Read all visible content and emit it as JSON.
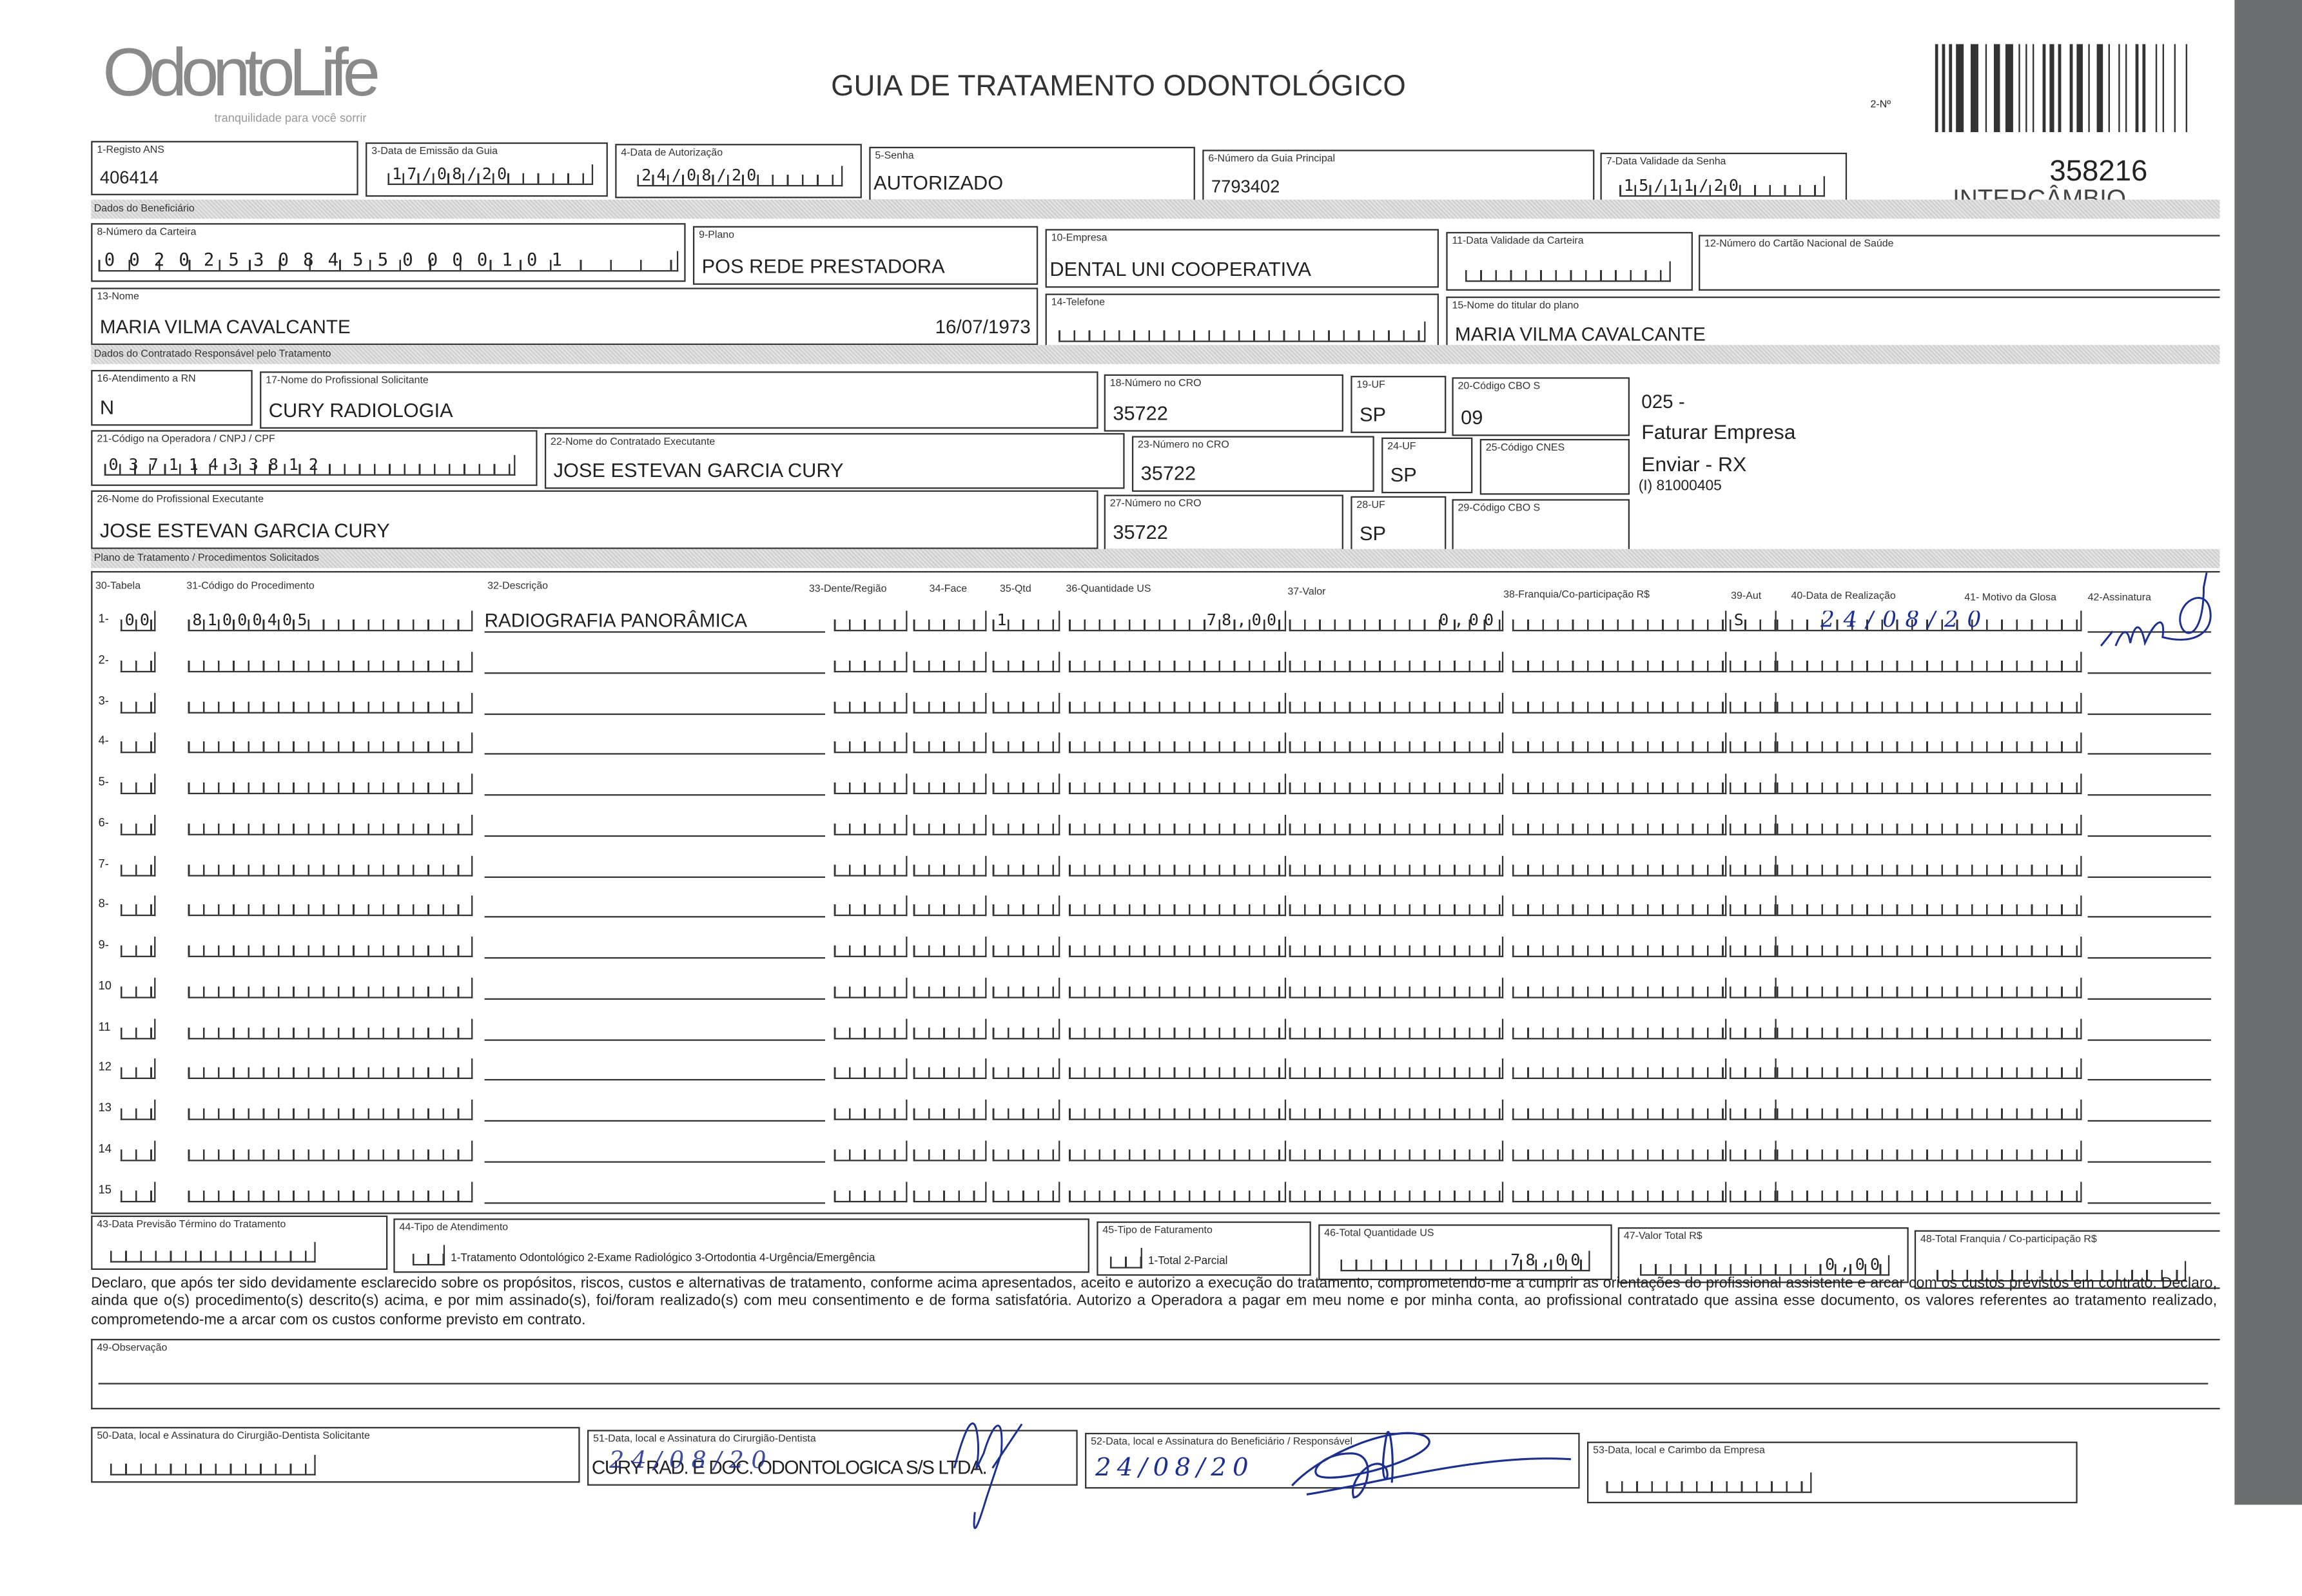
{
  "header": {
    "logo_text": "OdontoLife",
    "logo_tagline": "tranquilidade para você sorrir",
    "title": "GUIA DE TRATAMENTO ODONTOLÓGICO",
    "guide_number_label": "2-Nº",
    "stamp_number": "358216",
    "stamp_text": "INTERCÂMBIO"
  },
  "fields": {
    "f1": {
      "label": "1-Registo ANS",
      "value": "406414"
    },
    "f3": {
      "label": "3-Data de Emissão da Guia",
      "value": "17/08/20"
    },
    "f4": {
      "label": "4-Data de Autorização",
      "value": "24/08/20"
    },
    "f5": {
      "label": "5-Senha",
      "value": "AUTORIZADO"
    },
    "f6": {
      "label": "6-Número da Guia Principal",
      "value": "7793402"
    },
    "f7": {
      "label": "7-Data Validade da Senha",
      "value": "15/11/20"
    },
    "f8": {
      "label": "8-Número da Carteira",
      "value": "0020253084550000101"
    },
    "f9": {
      "label": "9-Plano",
      "value": "POS REDE PRESTADORA"
    },
    "f10": {
      "label": "10-Empresa",
      "value": "DENTAL UNI  COOPERATIVA"
    },
    "f11": {
      "label": "11-Data Validade da Carteira",
      "value": "/ /"
    },
    "f12": {
      "label": "12-Número do Cartão Nacional de Saúde",
      "value": ""
    },
    "f13": {
      "label": "13-Nome",
      "value": "MARIA VILMA CAVALCANTE",
      "birth": "16/07/1973"
    },
    "f14": {
      "label": "14-Telefone",
      "value": "(   )        -"
    },
    "f15": {
      "label": "15-Nome do titular do plano",
      "value": "MARIA VILMA CAVALCANTE"
    },
    "f16": {
      "label": "16-Atendimento a RN",
      "value": "N"
    },
    "f17": {
      "label": "17-Nome do Profissional Solicitante",
      "value": "CURY RADIOLOGIA"
    },
    "f18": {
      "label": "18-Número no CRO",
      "value": "35722"
    },
    "f19": {
      "label": "19-UF",
      "value": "SP"
    },
    "f20": {
      "label": "20-Código CBO S",
      "value": "09"
    },
    "f21": {
      "label": "21-Código na Operadora / CNPJ / CPF",
      "value": "03711433812"
    },
    "f22": {
      "label": "22-Nome do Contratado Executante",
      "value": "JOSE ESTEVAN GARCIA CURY"
    },
    "f23": {
      "label": "23-Número no CRO",
      "value": "35722"
    },
    "f24": {
      "label": "24-UF",
      "value": "SP"
    },
    "f25": {
      "label": "25-Código CNES",
      "value": ""
    },
    "f26": {
      "label": "26-Nome do Profissional Executante",
      "value": "JOSE ESTEVAN GARCIA CURY"
    },
    "f27": {
      "label": "27-Número no CRO",
      "value": "35722"
    },
    "f28": {
      "label": "28-UF",
      "value": "SP"
    },
    "f29": {
      "label": "29-Código CBO S",
      "value": ""
    }
  },
  "side_notes": {
    "line1": "025 -",
    "line2": "Faturar Empresa",
    "line3": "Enviar - RX",
    "line4": "(I) 81000405"
  },
  "sections": {
    "beneficiario": "Dados do Beneficiário",
    "contratado": "Dados do Contratado Responsável pelo Tratamento",
    "plano": "Plano de Tratamento / Procedimentos Solicitados"
  },
  "procedures": {
    "headers": {
      "tabela": "30-Tabela",
      "codigo": "31-Código do Procedimento",
      "descricao": "32-Descrição",
      "dente": "33-Dente/Região",
      "face": "34-Face",
      "qtd": "35-Qtd",
      "qtd_us": "36-Quantidade US",
      "valor": "37-Valor",
      "franquia": "38-Franquia/Co-participação R$",
      "aut": "39-Aut",
      "data": "40-Data de Realização",
      "glosa": "41- Motivo da Glosa",
      "assinatura": "42-Assinatura"
    },
    "rows": [
      {
        "num": "1-",
        "tabela": "00",
        "codigo": "81000405",
        "descricao": "RADIOGRAFIA PANORÂMICA",
        "dente": "",
        "face": "",
        "qtd": "1",
        "qtd_us": "78,00",
        "valor": "0,00",
        "franquia": "",
        "aut": "S",
        "data": "24/08/20",
        "signed": true
      },
      {
        "num": "2-"
      },
      {
        "num": "3-"
      },
      {
        "num": "4-"
      },
      {
        "num": "5-"
      },
      {
        "num": "6-"
      },
      {
        "num": "7-"
      },
      {
        "num": "8-"
      },
      {
        "num": "9-"
      },
      {
        "num": "10"
      },
      {
        "num": "11"
      },
      {
        "num": "12"
      },
      {
        "num": "13"
      },
      {
        "num": "14"
      },
      {
        "num": "15"
      }
    ]
  },
  "totals": {
    "f43": {
      "label": "43-Data Previsão Término do Tratamento",
      "value": ""
    },
    "f44": {
      "label": "44-Tipo de Atendimento",
      "options": "1-Tratamento Odontológico  2-Exame Radiológico  3-Ortodontia  4-Urgência/Emergência",
      "value": ""
    },
    "f45": {
      "label": "45-Tipo de Faturamento",
      "options": "1-Total  2-Parcial",
      "value": ""
    },
    "f46": {
      "label": "46-Total Quantidade US",
      "value": "78,00"
    },
    "f47": {
      "label": "47-Valor Total R$",
      "value": "0,00"
    },
    "f48": {
      "label": "48-Total Franquia / Co-participação R$",
      "value": ""
    }
  },
  "declaration": "Declaro, que após ter sido devidamente esclarecido sobre os propósitos, riscos, custos e alternativas de tratamento, conforme acima apresentados, aceito e autorizo a execução do tratamento, comprometendo-me a cumprir as orientações do profissional assistente e arcar com os custos previstos em contrato. Declaro, ainda que o(s) procedimento(s) descrito(s) acima, e por mim assinado(s), foi/foram realizado(s) com meu consentimento e de forma satisfatória. Autorizo a Operadora a pagar em meu nome e por minha conta, ao profissional contratado que assina esse documento, os valores referentes ao tratamento realizado, comprometendo-me a arcar com os custos conforme previsto em contrato.",
  "observacao": {
    "label": "49-Observação",
    "value": ""
  },
  "signatures": {
    "f50": {
      "label": "50-Data, local e Assinatura do Cirurgião-Dentista Solicitante",
      "date": ""
    },
    "f51": {
      "label": "51-Data, local e Assinatura do Cirurgião-Dentista",
      "stamp": "CURY RAD. E DOC. ODONTOLOGICA S/S LTDA.",
      "date": "24/08/20"
    },
    "f52": {
      "label": "52-Data, local e Assinatura do Beneficiário / Responsável",
      "date": "24/08/20"
    },
    "f53": {
      "label": "53-Data, local e Carimbo da Empresa",
      "date": ""
    }
  },
  "colors": {
    "ink": "#222222",
    "pen": "#1d2f8f",
    "scanner_edge": "#6b6e6e",
    "shade": "#d9d9d9"
  }
}
